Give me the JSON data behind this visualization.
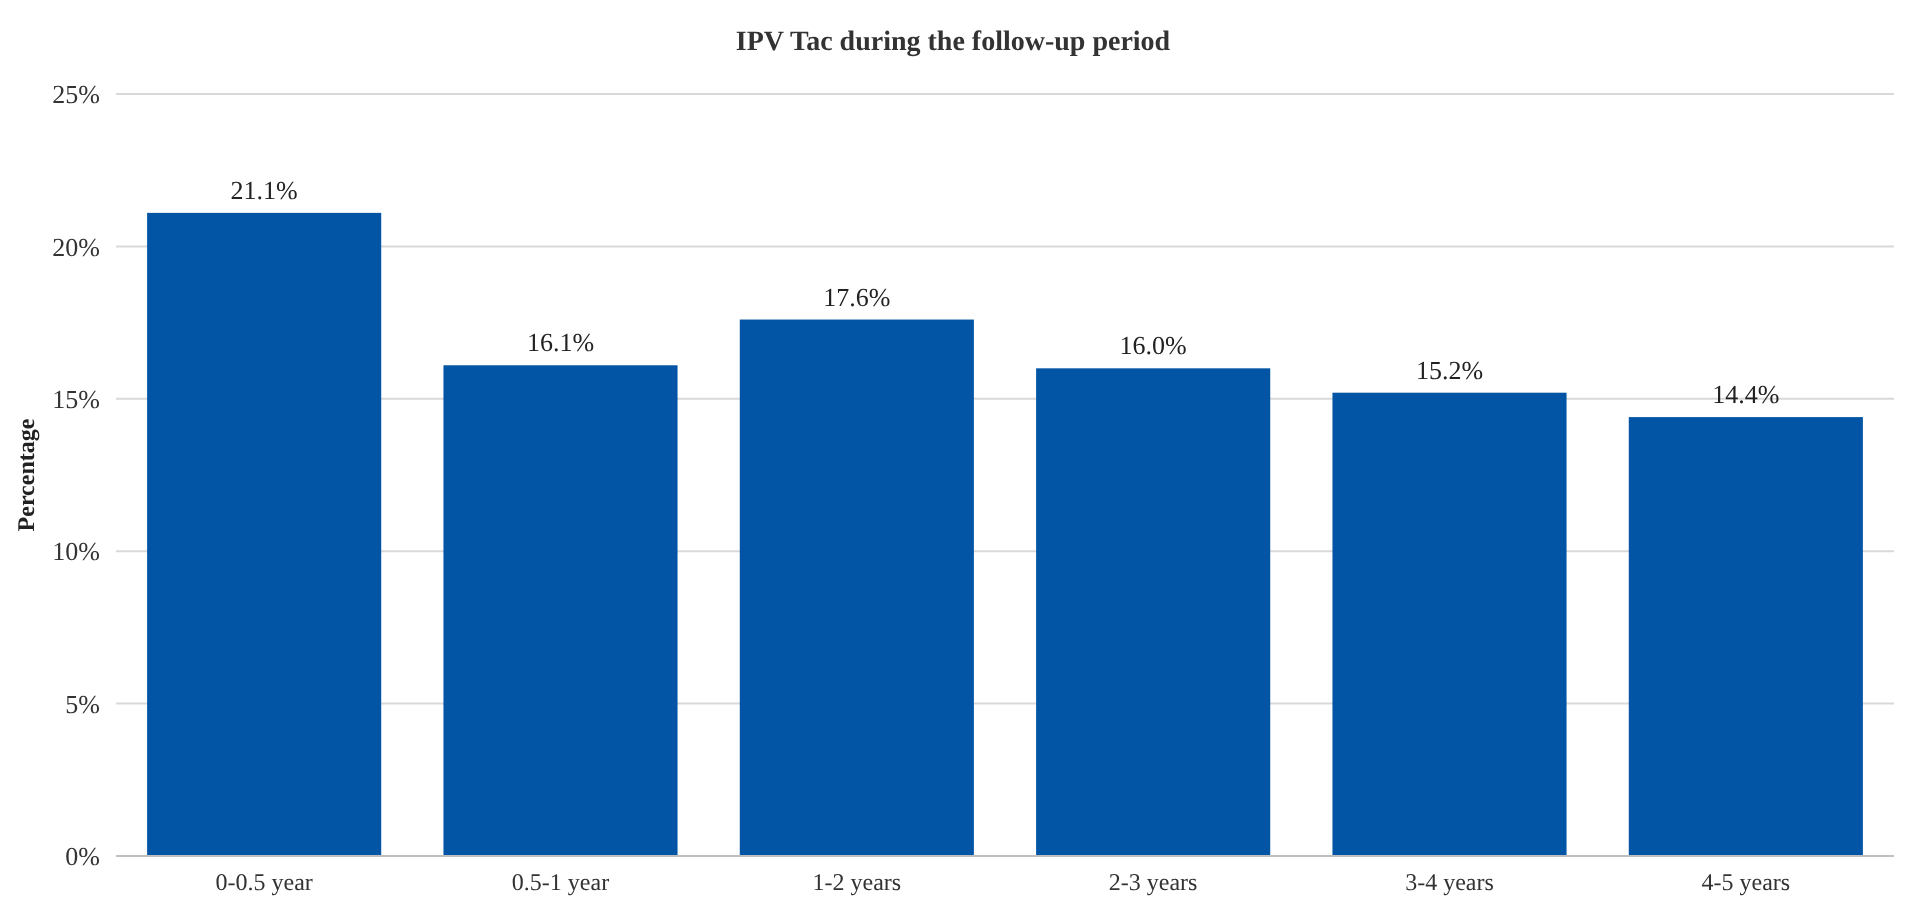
{
  "chart_data": {
    "type": "bar",
    "title": "IPV Tac during the follow-up period",
    "ylabel": "Percentage",
    "categories": [
      "0-0.5 year",
      "0.5-1 year",
      "1-2 years",
      "2-3 years",
      "3-4 years",
      "4-5 years"
    ],
    "values": [
      21.1,
      16.1,
      17.6,
      16.0,
      15.2,
      14.4
    ],
    "value_labels": [
      "21.1%",
      "16.1%",
      "17.6%",
      "16.0%",
      "15.2%",
      "14.4%"
    ],
    "color": "#0255a5",
    "ylim": [
      0,
      25
    ],
    "yticks": [
      {
        "value": 0,
        "label": "0%"
      },
      {
        "value": 5,
        "label": "5%"
      },
      {
        "value": 10,
        "label": "10%"
      },
      {
        "value": 15,
        "label": "15%"
      },
      {
        "value": 20,
        "label": "20%"
      },
      {
        "value": 25,
        "label": "25%"
      }
    ],
    "grid": "y"
  }
}
